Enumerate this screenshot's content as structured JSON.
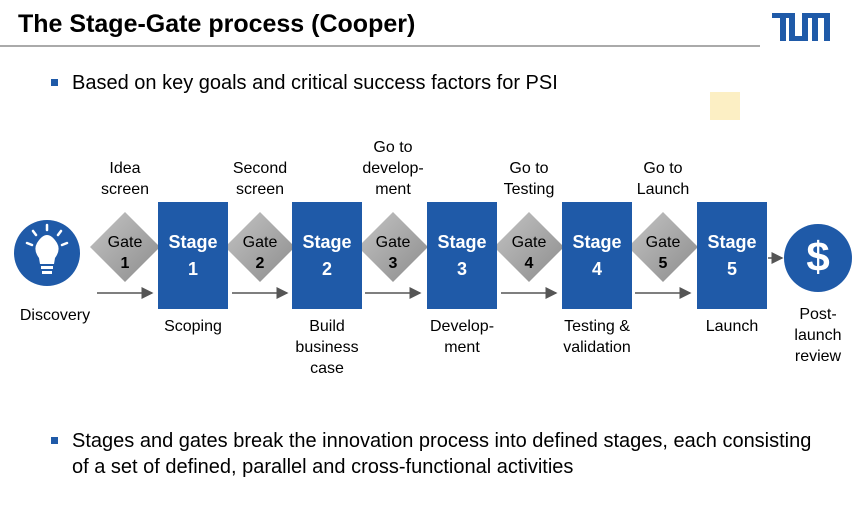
{
  "header": {
    "title": "The Stage-Gate process (Cooper)"
  },
  "bullets": [
    "Based on key goals and critical success factors for PSI",
    "Stages and gates break the innovation process into defined stages, each consisting of a set of defined, parallel and cross-functional activities"
  ],
  "discovery": {
    "label": "Discovery"
  },
  "gates": [
    {
      "label": "Gate",
      "number": "1",
      "above": [
        "Idea",
        "screen"
      ]
    },
    {
      "label": "Gate",
      "number": "2",
      "above": [
        "Second",
        "screen"
      ]
    },
    {
      "label": "Gate",
      "number": "3",
      "above": [
        "Go to",
        "develop-",
        "ment"
      ]
    },
    {
      "label": "Gate",
      "number": "4",
      "above": [
        "Go to",
        "Testing"
      ]
    },
    {
      "label": "Gate",
      "number": "5",
      "above": [
        "Go to",
        "Launch"
      ]
    }
  ],
  "stages": [
    {
      "label": "Stage",
      "number": "1",
      "below": [
        "Scoping"
      ]
    },
    {
      "label": "Stage",
      "number": "2",
      "below": [
        "Build",
        "business",
        "case"
      ]
    },
    {
      "label": "Stage",
      "number": "3",
      "below": [
        "Develop-",
        "ment"
      ]
    },
    {
      "label": "Stage",
      "number": "4",
      "below": [
        "Testing &",
        "validation"
      ]
    },
    {
      "label": "Stage",
      "number": "5",
      "below": [
        "Launch"
      ]
    }
  ],
  "post_launch": {
    "label": [
      "Post-",
      "launch",
      "review"
    ]
  }
}
